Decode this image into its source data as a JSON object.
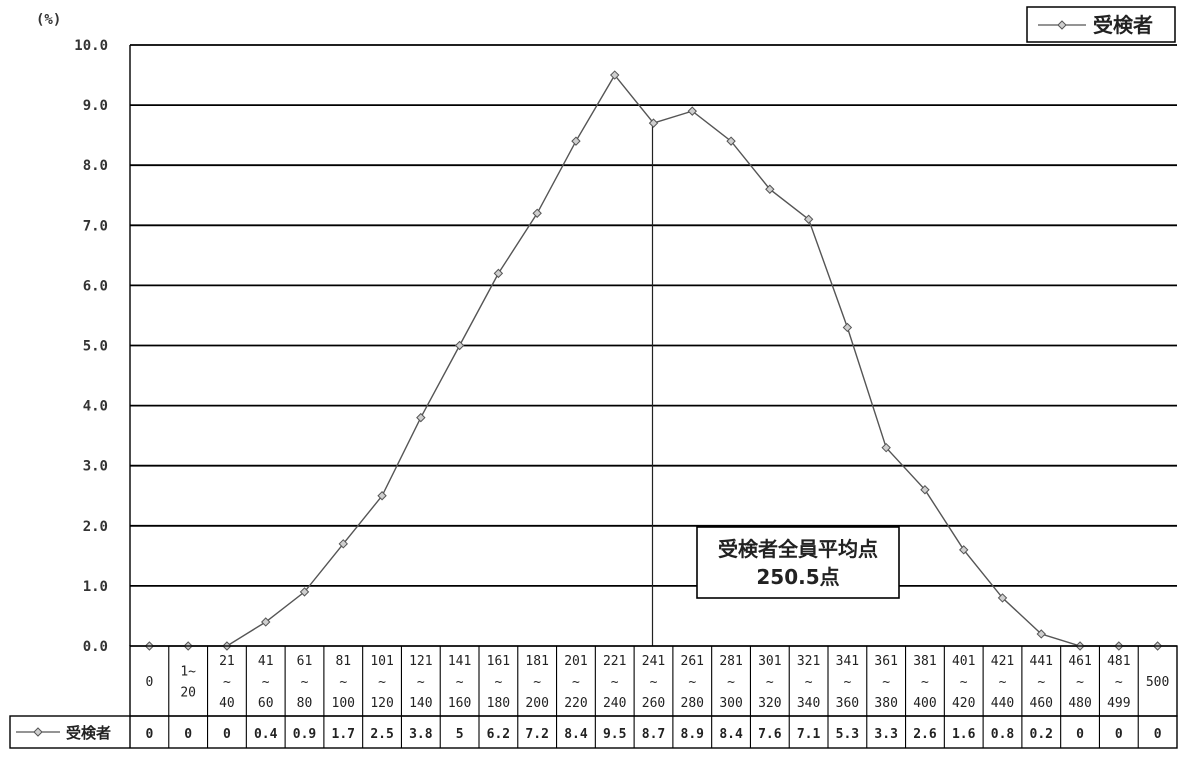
{
  "chart_data": {
    "type": "line",
    "y_unit_label": "(%)",
    "ylim": [
      0,
      10
    ],
    "y_ticks": [
      "0.0",
      "1.0",
      "2.0",
      "3.0",
      "4.0",
      "5.0",
      "6.0",
      "7.0",
      "8.0",
      "9.0",
      "10.0"
    ],
    "grid": true,
    "legend_position": "top-right",
    "categories": [
      [
        "0"
      ],
      [
        "1~",
        "20"
      ],
      [
        "21",
        "~",
        "40"
      ],
      [
        "41",
        "~",
        "60"
      ],
      [
        "61",
        "~",
        "80"
      ],
      [
        "81",
        "~",
        "100"
      ],
      [
        "101",
        "~",
        "120"
      ],
      [
        "121",
        "~",
        "140"
      ],
      [
        "141",
        "~",
        "160"
      ],
      [
        "161",
        "~",
        "180"
      ],
      [
        "181",
        "~",
        "200"
      ],
      [
        "201",
        "~",
        "220"
      ],
      [
        "221",
        "~",
        "240"
      ],
      [
        "241",
        "~",
        "260"
      ],
      [
        "261",
        "~",
        "280"
      ],
      [
        "281",
        "~",
        "300"
      ],
      [
        "301",
        "~",
        "320"
      ],
      [
        "321",
        "~",
        "340"
      ],
      [
        "341",
        "~",
        "360"
      ],
      [
        "361",
        "~",
        "380"
      ],
      [
        "381",
        "~",
        "400"
      ],
      [
        "401",
        "~",
        "420"
      ],
      [
        "421",
        "~",
        "440"
      ],
      [
        "441",
        "~",
        "460"
      ],
      [
        "461",
        "~",
        "480"
      ],
      [
        "481",
        "~",
        "499"
      ],
      [
        "500"
      ]
    ],
    "series": [
      {
        "name": "受検者",
        "color": "#555555",
        "values": [
          0,
          0,
          0,
          0.4,
          0.9,
          1.7,
          2.5,
          3.8,
          5,
          6.2,
          7.2,
          8.4,
          9.5,
          8.7,
          8.9,
          8.4,
          7.6,
          7.1,
          5.3,
          3.3,
          2.6,
          1.6,
          0.8,
          0.2,
          0,
          0,
          0
        ],
        "labels": [
          "0",
          "0",
          "0",
          "0.4",
          "0.9",
          "1.7",
          "2.5",
          "3.8",
          "5",
          "6.2",
          "7.2",
          "8.4",
          "9.5",
          "8.7",
          "8.9",
          "8.4",
          "7.6",
          "7.1",
          "5.3",
          "3.3",
          "2.6",
          "1.6",
          "0.8",
          "0.2",
          "0",
          "0",
          "0"
        ]
      }
    ],
    "annotation": {
      "lines": [
        "受検者全員平均点",
        "250.5点"
      ],
      "x_value": 250.5,
      "category_index": 13
    }
  }
}
